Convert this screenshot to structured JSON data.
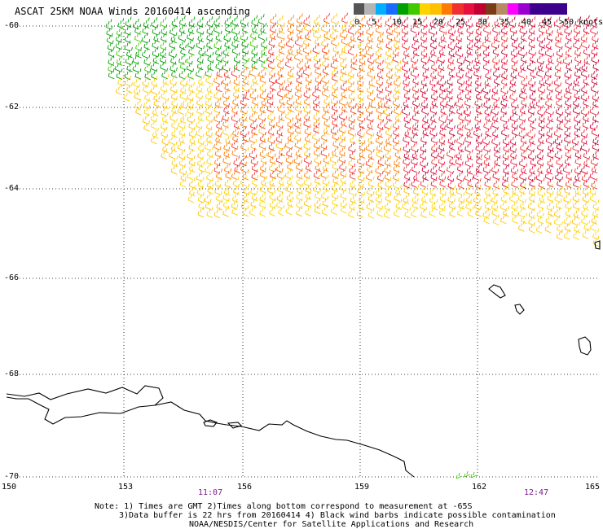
{
  "title": "ASCAT 25KM NOAA Winds 20160414 ascending",
  "legend": {
    "labels": [
      "0",
      "5",
      "10",
      "15",
      "20",
      "25",
      "30",
      "35",
      "40",
      "45",
      ">50 knots"
    ],
    "colors": [
      "#555555",
      "#b4b4b4",
      "#00b0ff",
      "#1a6bff",
      "#00a000",
      "#40c800",
      "#ffd200",
      "#ffc000",
      "#ff7a00",
      "#f03030",
      "#e8103c",
      "#c00030",
      "#7a3c16",
      "#b88a64",
      "#ff00ff",
      "#9a00d0",
      "#3c008c"
    ]
  },
  "lat_labels": [
    "-60",
    "-62",
    "-64",
    "-66",
    "-68",
    "-70"
  ],
  "lon_labels": [
    "150",
    "153",
    "156",
    "159",
    "162",
    "165"
  ],
  "times": [
    "11:07",
    "12:47"
  ],
  "notes": [
    "Note: 1) Times are GMT 2)Times along bottom correspond to measurement at -65S",
    "3)Data buffer is 22 hrs from 20160414 4) Black wind barbs indicate possible contamination",
    "NOAA/NESDIS/Center for Satellite Applications and Research"
  ]
}
